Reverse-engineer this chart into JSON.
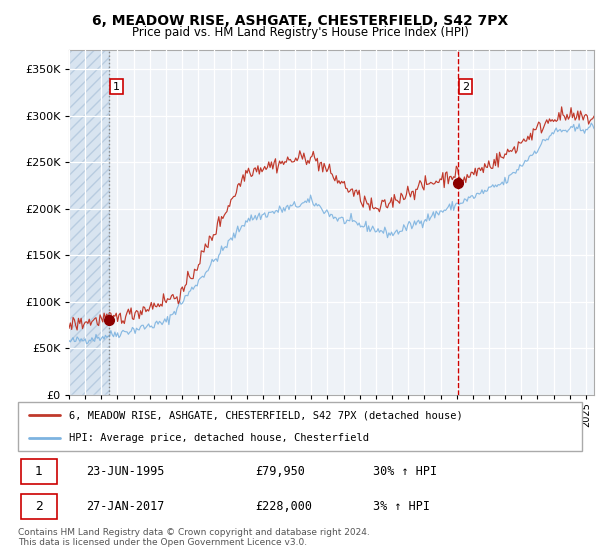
{
  "title": "6, MEADOW RISE, ASHGATE, CHESTERFIELD, S42 7PX",
  "subtitle": "Price paid vs. HM Land Registry's House Price Index (HPI)",
  "legend_line1": "6, MEADOW RISE, ASHGATE, CHESTERFIELD, S42 7PX (detached house)",
  "legend_line2": "HPI: Average price, detached house, Chesterfield",
  "transaction1_date": "23-JUN-1995",
  "transaction1_price": "£79,950",
  "transaction1_hpi": "30% ↑ HPI",
  "transaction2_date": "27-JAN-2017",
  "transaction2_price": "£228,000",
  "transaction2_hpi": "3% ↑ HPI",
  "copyright": "Contains HM Land Registry data © Crown copyright and database right 2024.\nThis data is licensed under the Open Government Licence v3.0.",
  "hpi_line_color": "#7db3e0",
  "price_line_color": "#c0392b",
  "marker_color": "#8b0000",
  "vline1_color": "#999999",
  "vline2_color": "#cc0000",
  "background_color": "#eef2f7",
  "plot_bg_color": "#f0f4f8",
  "hatch_facecolor": "#d8e4f0",
  "hatch_edgecolor": "#b8cce0",
  "grid_color": "#d0d8e4",
  "ylim": [
    0,
    370000
  ],
  "yticks": [
    0,
    50000,
    100000,
    150000,
    200000,
    250000,
    300000,
    350000
  ],
  "xlim_start": 1993.0,
  "xlim_end": 2025.5,
  "transaction1_x": 1995.47,
  "transaction1_y": 79950,
  "transaction2_x": 2017.07,
  "transaction2_y": 228000,
  "fig_width": 6.0,
  "fig_height": 5.6
}
